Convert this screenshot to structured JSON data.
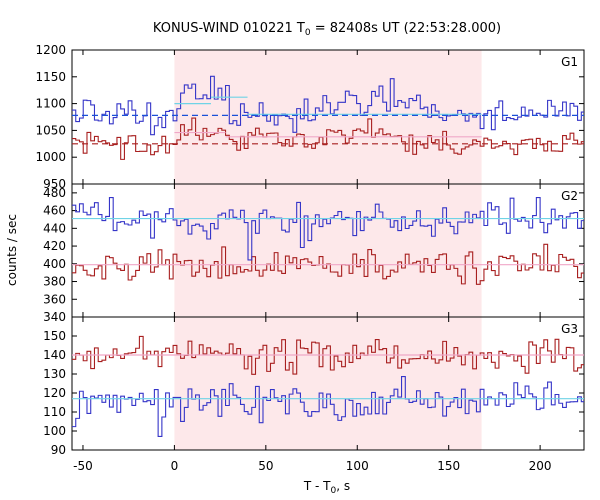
{
  "chart_data": {
    "type": "line",
    "title": "KONUS-WIND 010221 T",
    "title_sub": "0",
    "title_rest": " = 82408s UT (22:53:28.000)",
    "xlabel": "T - T",
    "xlabel_sub": "0",
    "xlabel_rest": ", s",
    "ylabel": "counts / sec",
    "xlim": [
      -56,
      224
    ],
    "xticks": [
      "-50",
      "0",
      "50",
      "100",
      "150",
      "200"
    ],
    "xtick_values": [
      -50,
      0,
      50,
      100,
      150,
      200
    ],
    "shaded_interval": [
      0,
      168
    ],
    "colors": {
      "blue": "#3535c8",
      "red": "#a81f1f",
      "fit_cyan": "#6fd3e6",
      "fit_pink": "#f0a7c8",
      "dash_blue": "#1a50d8",
      "dash_red": "#a81f1f",
      "shade": "#fde8ea"
    },
    "panels": [
      {
        "name": "G1",
        "ylim": [
          950,
          1200
        ],
        "yticks": [
          "950",
          "1000",
          "1050",
          "1100",
          "1150",
          "1200"
        ],
        "ytick_values": [
          950,
          1000,
          1050,
          1100,
          1150,
          1200
        ],
        "blue": {
          "mean": 1078,
          "amp": 14,
          "seed": 11,
          "bumps": [
            [
              2,
              28,
              42
            ],
            [
              80,
              142,
              28
            ],
            [
              -50,
              -44,
              20
            ],
            [
              -15,
              -10,
              -20
            ]
          ],
          "fit": [
            [
              0,
              20,
              1100
            ],
            [
              20,
              40,
              1112
            ],
            [
              40,
              168,
              1080
            ]
          ],
          "baseline": 1078
        },
        "red": {
          "mean": 1025,
          "amp": 12,
          "seed": 23,
          "bumps": [
            [
              0,
              28,
              22
            ],
            [
              40,
              70,
              22
            ],
            [
              80,
              120,
              18
            ],
            [
              -20,
              -8,
              -18
            ]
          ],
          "fit": [
            [
              0,
              28,
              1046
            ],
            [
              28,
              168,
              1038
            ]
          ],
          "baseline": 1025
        }
      },
      {
        "name": "G2",
        "ylim": [
          340,
          490
        ],
        "yticks": [
          "340",
          "360",
          "380",
          "400",
          "420",
          "440",
          "460",
          "480"
        ],
        "ytick_values": [
          340,
          360,
          380,
          400,
          420,
          440,
          460,
          480
        ],
        "blue": {
          "mean": 450,
          "amp": 10,
          "seed": 37,
          "bumps": [
            [
              14,
              16,
              -25
            ],
            [
              40,
              42,
              -30
            ],
            [
              68,
              70,
              -25
            ]
          ],
          "fit": [
            [
              -56,
              224,
              451
            ]
          ],
          "baseline": null
        },
        "red": {
          "mean": 398,
          "amp": 9,
          "seed": 53,
          "bumps": [
            [
              -27,
              -25,
              -20
            ]
          ],
          "fit": [
            [
              -56,
              224,
              399
            ]
          ],
          "baseline": null
        }
      },
      {
        "name": "G3",
        "ylim": [
          90,
          160
        ],
        "yticks": [
          "90",
          "100",
          "110",
          "120",
          "130",
          "140",
          "150"
        ],
        "ytick_values": [
          90,
          100,
          110,
          120,
          130,
          140,
          150
        ],
        "blue": {
          "mean": 116,
          "amp": 5,
          "seed": 71,
          "bumps": [
            [
              -10,
              -8,
              -15
            ],
            [
              14,
              16,
              -12
            ]
          ],
          "fit": [
            [
              -56,
              224,
              117
            ]
          ],
          "baseline": null
        },
        "red": {
          "mean": 140,
          "amp": 4,
          "seed": 89,
          "bumps": [
            [
              146,
              148,
              10
            ]
          ],
          "fit": [
            [
              -56,
              224,
              140
            ]
          ],
          "baseline": null
        }
      }
    ]
  }
}
